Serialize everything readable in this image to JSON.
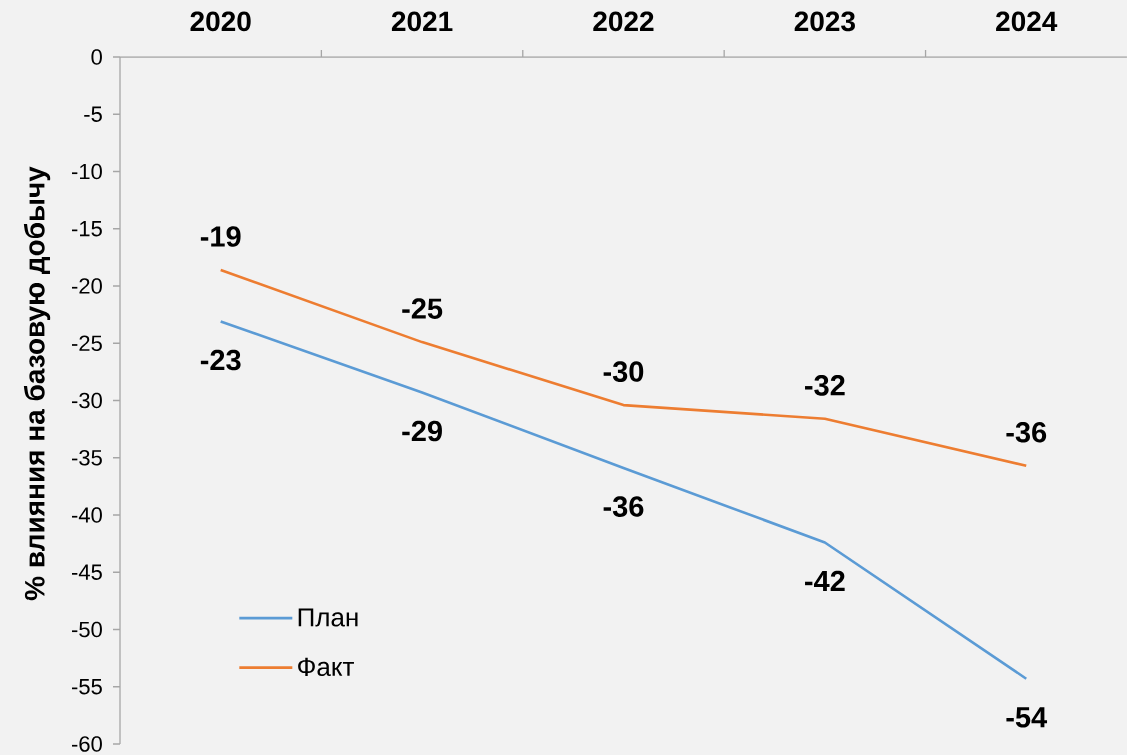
{
  "chart_data": {
    "type": "line",
    "ylabel": "% влияния на базовую добычу",
    "categories": [
      "2020",
      "2021",
      "2022",
      "2023",
      "2024"
    ],
    "series": [
      {
        "name": "План",
        "color": "#5b9bd5",
        "values": [
          -23.1,
          -29.3,
          -35.9,
          -42.4,
          -54.3
        ],
        "value_labels": [
          "-23",
          "-29",
          "-36",
          "-42",
          "-54"
        ]
      },
      {
        "name": "Факт",
        "color": "#ed7d31",
        "values": [
          -18.6,
          -24.9,
          -30.4,
          -31.6,
          -35.7
        ],
        "value_labels": [
          "-19",
          "-25",
          "-30",
          "-32",
          "-36"
        ]
      }
    ],
    "ylim": [
      -60,
      0
    ],
    "yticks": [
      -60,
      -55,
      -50,
      -45,
      -40,
      -35,
      -30,
      -25,
      -20,
      -15,
      -10,
      -5,
      0
    ],
    "grid": false,
    "legend": "bottom left",
    "marker": "none",
    "line_style": "solid"
  }
}
